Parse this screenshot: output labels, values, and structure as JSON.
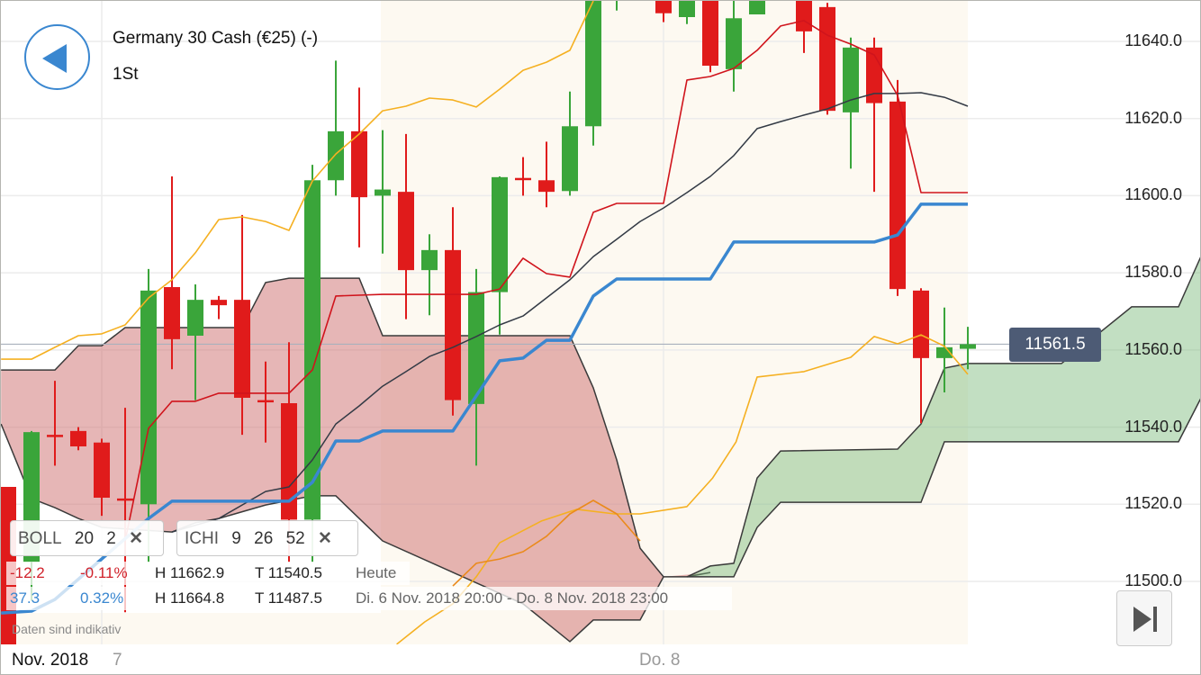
{
  "header": {
    "title": "Germany 30 Cash (€25) (-)",
    "period": "1St"
  },
  "colors": {
    "accent": "#3a87d0",
    "up": "#3aa53a",
    "down": "#e01b1b",
    "price_tag": "#4d5b75"
  },
  "icons": {
    "back": "triangle-left-icon",
    "end": "skip-to-end-icon",
    "remove": "close-x-icon"
  },
  "indicators": [
    {
      "name": "BOLL",
      "params": [
        "20",
        "2"
      ],
      "remove": "✕"
    },
    {
      "name": "ICHI",
      "params": [
        "9",
        "26",
        "52"
      ],
      "remove": "✕"
    }
  ],
  "stats": [
    {
      "change": "-12.2",
      "pct": "-0.11%",
      "high": "H 11662.9",
      "low": "T 11540.5",
      "range": "Heute",
      "color": "#d0212a"
    },
    {
      "change": "37.3",
      "pct": "0.32%",
      "high": "H 11664.8",
      "low": "T 11487.5",
      "range": "Di. 6 Nov. 2018 20:00 - Do. 8 Nov. 2018 23:00",
      "color": "#3a87d0"
    }
  ],
  "note": "Daten sind indikativ",
  "xaxis": {
    "month": "Nov. 2018",
    "day7": "7",
    "day8": "Do. 8"
  },
  "chart_data": {
    "type": "candlestick",
    "yticks": [
      "11640.0",
      "11620.0",
      "11600.0",
      "11580.0",
      "11560.0",
      "11540.0",
      "11520.0",
      "11500.0"
    ],
    "ylim": [
      11483,
      11651
    ],
    "current_price": 11561.5,
    "current_price_label": "11561.5",
    "candles_ohlc": [
      [
        11524.5,
        11524.5,
        11478,
        11480
      ],
      [
        11505,
        11539,
        11495,
        11538.7
      ],
      [
        11538,
        11552,
        11530,
        11537.8
      ],
      [
        11539,
        11540,
        11534,
        11535
      ],
      [
        11536,
        11537,
        11517,
        11521.7
      ],
      [
        11521.5,
        11545,
        11492,
        11521
      ],
      [
        11520,
        11581,
        11505,
        11575.4
      ],
      [
        11576.3,
        11605,
        11555,
        11562.8
      ],
      [
        11563.7,
        11577,
        11547,
        11573
      ],
      [
        11573,
        11574,
        11568,
        11571.6
      ],
      [
        11573,
        11595,
        11538,
        11547.6
      ],
      [
        11547,
        11557,
        11536,
        11546.5
      ],
      [
        11546.2,
        11562,
        11505,
        11516
      ],
      [
        11516,
        11608,
        11505,
        11604
      ],
      [
        11604,
        11635,
        11600,
        11616.7
      ],
      [
        11616.7,
        11628,
        11586.6,
        11599.6
      ],
      [
        11600,
        11617,
        11585,
        11601.6
      ],
      [
        11601,
        11616,
        11568,
        11580.7
      ],
      [
        11580.7,
        11590,
        11569,
        11585.9
      ],
      [
        11585.9,
        11597,
        11543,
        11547
      ],
      [
        11546,
        11581,
        11530,
        11575
      ],
      [
        11575,
        11605,
        11564,
        11604.8
      ],
      [
        11604.6,
        11610,
        11600,
        11604.4
      ],
      [
        11604,
        11614,
        11597,
        11601
      ],
      [
        11601.2,
        11627,
        11600,
        11618
      ],
      [
        11618,
        11660,
        11613,
        11655
      ],
      [
        11652,
        11665,
        11648,
        11655
      ],
      null,
      [
        11660,
        11662,
        11645,
        11647.3
      ],
      [
        11646.3,
        11660,
        11644.5,
        11655
      ],
      [
        11660,
        11662,
        11632,
        11633.7
      ],
      [
        11632.8,
        11660,
        11627,
        11646
      ],
      [
        11647,
        11660,
        11647,
        11655
      ],
      null,
      [
        11660,
        11662,
        11637,
        11642.6
      ],
      [
        11648.9,
        11650,
        11621,
        11622
      ],
      [
        11621.6,
        11641,
        11607,
        11638.4
      ],
      [
        11638.4,
        11641,
        11601,
        11624
      ],
      [
        11624.4,
        11630,
        11574,
        11575.8
      ],
      [
        11575.4,
        11576,
        11541,
        11557.9
      ],
      [
        11557.9,
        11571,
        11549,
        11560.7
      ],
      [
        11560.3,
        11566,
        11555,
        11561.5
      ]
    ],
    "bollinger_upper": [
      [
        -0.3,
        11557.6
      ],
      [
        1,
        11557.6
      ],
      [
        2,
        11560.7
      ],
      [
        3,
        11563.7
      ],
      [
        4,
        11564.2
      ],
      [
        5,
        11566.5
      ],
      [
        6,
        11573.5
      ],
      [
        7,
        11578.2
      ],
      [
        8,
        11585.2
      ],
      [
        9,
        11593.8
      ],
      [
        10,
        11594.5
      ],
      [
        11,
        11593.3
      ],
      [
        12,
        11591
      ],
      [
        13,
        11603.8
      ],
      [
        14,
        11610.8
      ],
      [
        15,
        11616
      ],
      [
        16,
        11622
      ],
      [
        17,
        11623.2
      ],
      [
        18,
        11625.3
      ],
      [
        19,
        11624.8
      ],
      [
        20,
        11623
      ],
      [
        21,
        11627.6
      ],
      [
        22,
        11632.5
      ],
      [
        23,
        11634.6
      ],
      [
        24,
        11637.7
      ],
      [
        25,
        11650.5
      ]
    ],
    "bollinger_lower": [
      [
        16.6,
        11483.7
      ],
      [
        17.8,
        11489.5
      ],
      [
        19,
        11494.2
      ],
      [
        20,
        11501.2
      ],
      [
        21,
        11510
      ],
      [
        22.8,
        11515.7
      ],
      [
        24.3,
        11518.7
      ],
      [
        25.9,
        11517.5
      ],
      [
        27,
        11517.5
      ],
      [
        29,
        11519.4
      ],
      [
        30.1,
        11526.8
      ],
      [
        31.1,
        11536.2
      ],
      [
        32,
        11553
      ],
      [
        34,
        11554.4
      ],
      [
        36,
        11558.1
      ],
      [
        37,
        11563.5
      ],
      [
        38,
        11561.6
      ],
      [
        39,
        11563.9
      ],
      [
        40,
        11561
      ],
      [
        41,
        11553.7
      ]
    ],
    "chikou_orange": [
      [
        19,
        11498.8
      ],
      [
        20,
        11504.7
      ],
      [
        21,
        11505.8
      ],
      [
        22,
        11507.7
      ],
      [
        23,
        11511.7
      ],
      [
        24,
        11517.5
      ],
      [
        25,
        11521
      ],
      [
        26,
        11517.5
      ],
      [
        27,
        11510.5
      ]
    ],
    "tenkan": [
      [
        5,
        11510.5
      ],
      [
        6,
        11539.7
      ],
      [
        7,
        11546.7
      ],
      [
        8,
        11546.7
      ],
      [
        9,
        11548.8
      ],
      [
        12,
        11548.8
      ],
      [
        13,
        11554.8
      ],
      [
        14,
        11574
      ],
      [
        16,
        11574.4
      ],
      [
        20,
        11574.4
      ],
      [
        21,
        11575.8
      ],
      [
        22,
        11583.8
      ],
      [
        23,
        11579.8
      ],
      [
        24,
        11578.9
      ],
      [
        25,
        11595.7
      ],
      [
        26,
        11598
      ],
      [
        28,
        11598
      ],
      [
        29,
        11630
      ],
      [
        30,
        11630.9
      ],
      [
        31,
        11633
      ],
      [
        32,
        11637.7
      ],
      [
        33,
        11644
      ],
      [
        34,
        11645.4
      ],
      [
        35,
        11641.6
      ],
      [
        36,
        11639.3
      ],
      [
        37,
        11636.5
      ],
      [
        38,
        11626
      ],
      [
        39,
        11600.8
      ],
      [
        41,
        11600.8
      ]
    ],
    "kijun": [
      [
        -0.3,
        11491.8
      ],
      [
        1,
        11492.3
      ],
      [
        2,
        11495.3
      ],
      [
        6,
        11516.3
      ],
      [
        7,
        11520.8
      ],
      [
        12,
        11520.8
      ],
      [
        13,
        11525.7
      ],
      [
        14,
        11536.4
      ],
      [
        15,
        11536.4
      ],
      [
        16,
        11539
      ],
      [
        19,
        11539
      ],
      [
        21,
        11557.2
      ],
      [
        22,
        11557.9
      ],
      [
        23,
        11562.5
      ],
      [
        24,
        11562.5
      ],
      [
        25,
        11574
      ],
      [
        26,
        11578.4
      ],
      [
        30,
        11578.4
      ],
      [
        31,
        11588
      ],
      [
        37,
        11588
      ],
      [
        38,
        11589.8
      ],
      [
        39,
        11597.8
      ],
      [
        41,
        11597.8
      ]
    ],
    "kijun_dark_line": [
      [
        7,
        11512.8
      ],
      [
        9,
        11516.3
      ],
      [
        11,
        11523.3
      ],
      [
        12,
        11524.5
      ],
      [
        13,
        11531.5
      ],
      [
        14,
        11540.8
      ],
      [
        15,
        11545.5
      ],
      [
        16,
        11550.6
      ],
      [
        17,
        11554.4
      ],
      [
        18,
        11558.3
      ],
      [
        19,
        11560.7
      ],
      [
        20,
        11563.5
      ],
      [
        21,
        11566.5
      ],
      [
        22,
        11568.8
      ],
      [
        23,
        11573.5
      ],
      [
        24,
        11578.2
      ],
      [
        25,
        11584.2
      ],
      [
        26,
        11588.7
      ],
      [
        27,
        11593.3
      ],
      [
        28,
        11596.8
      ],
      [
        29,
        11600.8
      ],
      [
        30,
        11605
      ],
      [
        31,
        11610.4
      ],
      [
        32,
        11617.4
      ],
      [
        33,
        11619.2
      ],
      [
        34,
        11620.9
      ],
      [
        35,
        11622.5
      ],
      [
        36,
        11624.8
      ],
      [
        37,
        11626.5
      ],
      [
        38,
        11626.5
      ],
      [
        39,
        11626.7
      ],
      [
        40,
        11625.5
      ],
      [
        41,
        11623.2
      ]
    ],
    "cloud_red_top": [
      [
        -0.3,
        11554.8
      ],
      [
        2,
        11554.8
      ],
      [
        3,
        11561.1
      ],
      [
        4,
        11561.1
      ],
      [
        5,
        11565.8
      ],
      [
        10,
        11565.8
      ],
      [
        11,
        11577.5
      ],
      [
        12,
        11578.6
      ],
      [
        15,
        11578.6
      ],
      [
        16,
        11563.7
      ],
      [
        24,
        11563.7
      ],
      [
        25,
        11550.2
      ],
      [
        26,
        11531.5
      ],
      [
        27,
        11508.6
      ],
      [
        28,
        11501.2
      ],
      [
        29,
        11501.2
      ],
      [
        30,
        11502.3
      ]
    ],
    "cloud_red_bottom": [
      [
        -0.3,
        11540.8
      ],
      [
        1,
        11521.5
      ],
      [
        2,
        11519.1
      ],
      [
        3,
        11516.3
      ],
      [
        4,
        11514
      ],
      [
        7,
        11512.8
      ],
      [
        8,
        11515.2
      ],
      [
        9,
        11516.3
      ],
      [
        11,
        11519.8
      ],
      [
        13,
        11522.2
      ],
      [
        14,
        11522.2
      ],
      [
        15,
        11516.3
      ],
      [
        16,
        11510.5
      ],
      [
        22,
        11494.2
      ],
      [
        24,
        11484.4
      ],
      [
        25,
        11490
      ],
      [
        27,
        11490
      ],
      [
        28,
        11501.2
      ]
    ],
    "cloud_green_top": [
      [
        29,
        11501.2
      ],
      [
        30,
        11504
      ],
      [
        31,
        11504.7
      ],
      [
        32,
        11526.8
      ],
      [
        33,
        11533.8
      ],
      [
        38,
        11534.3
      ],
      [
        39,
        11540.8
      ],
      [
        40,
        11555.3
      ],
      [
        41,
        11556.5
      ],
      [
        45,
        11556.5
      ],
      [
        48,
        11571.2
      ],
      [
        50,
        11571.2
      ],
      [
        51,
        11584.8
      ]
    ],
    "cloud_green_bottom": [
      [
        29,
        11501.2
      ],
      [
        31,
        11501.2
      ],
      [
        32,
        11514
      ],
      [
        33,
        11520.5
      ],
      [
        39,
        11520.5
      ],
      [
        40,
        11536.2
      ],
      [
        50,
        11536.2
      ],
      [
        51,
        11548
      ]
    ]
  }
}
